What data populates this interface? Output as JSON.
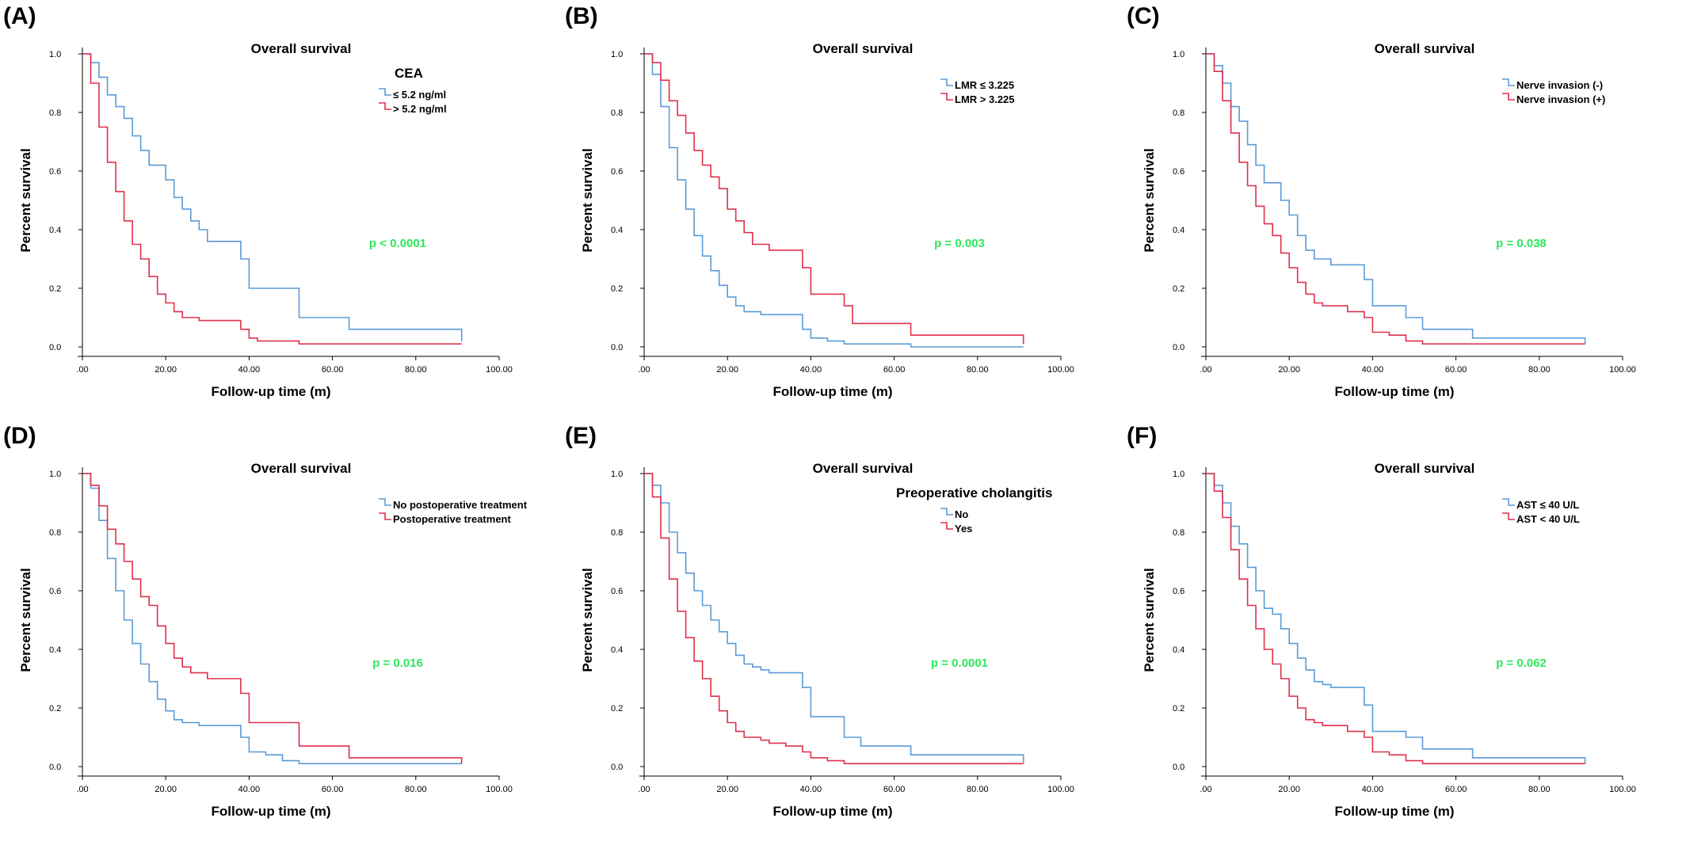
{
  "panels": [
    {
      "label": "(A)",
      "legend_title": "CEA",
      "p_value": "p < 0.0001",
      "chart_data": {
        "type": "line",
        "title": "Overall survival",
        "xlabel": "Follow-up time (m)",
        "ylabel": "Percent survival",
        "xlim": [
          0,
          100
        ],
        "ylim": [
          0,
          1.0
        ],
        "xticks": [
          ".00",
          "20.00",
          "40.00",
          "60.00",
          "80.00",
          "100.00"
        ],
        "yticks": [
          "0.0",
          "0.2",
          "0.4",
          "0.6",
          "0.8",
          "1.0"
        ],
        "grid": false,
        "legend_position": "top-right",
        "series": [
          {
            "name": "≤ 5.2 ng/ml",
            "color": "#5b9bd5",
            "x": [
              0,
              2,
              4,
              6,
              8,
              10,
              12,
              14,
              16,
              18,
              20,
              22,
              24,
              26,
              28,
              30,
              33,
              36,
              38,
              40,
              44,
              48,
              52,
              56,
              60,
              64,
              70,
              80,
              91
            ],
            "y": [
              1.0,
              0.97,
              0.92,
              0.86,
              0.82,
              0.78,
              0.72,
              0.67,
              0.62,
              0.62,
              0.57,
              0.51,
              0.47,
              0.43,
              0.4,
              0.36,
              0.36,
              0.36,
              0.3,
              0.2,
              0.2,
              0.2,
              0.1,
              0.1,
              0.1,
              0.06,
              0.06,
              0.06,
              0.02
            ]
          },
          {
            "name": "> 5.2 ng/ml",
            "color": "#e0304b",
            "x": [
              0,
              2,
              4,
              6,
              8,
              10,
              12,
              14,
              16,
              18,
              20,
              22,
              24,
              26,
              28,
              30,
              34,
              38,
              40,
              42,
              44,
              48,
              52,
              56,
              60,
              64,
              70,
              80,
              91
            ],
            "y": [
              1.0,
              0.9,
              0.75,
              0.63,
              0.53,
              0.43,
              0.35,
              0.3,
              0.24,
              0.18,
              0.15,
              0.12,
              0.1,
              0.1,
              0.09,
              0.09,
              0.09,
              0.06,
              0.03,
              0.02,
              0.02,
              0.02,
              0.01,
              0.01,
              0.01,
              0.01,
              0.01,
              0.01,
              0.01
            ]
          }
        ]
      }
    },
    {
      "label": "(B)",
      "legend_title": "",
      "p_value": "p = 0.003",
      "chart_data": {
        "type": "line",
        "title": "Overall survival",
        "xlabel": "Follow-up time (m)",
        "ylabel": "Percent survival",
        "xlim": [
          0,
          100
        ],
        "ylim": [
          0,
          1.0
        ],
        "xticks": [
          ".00",
          "20.00",
          "40.00",
          "60.00",
          "80.00",
          "100.00"
        ],
        "yticks": [
          "0.0",
          "0.2",
          "0.4",
          "0.6",
          "0.8",
          "1.0"
        ],
        "grid": false,
        "legend_position": "top-right",
        "series": [
          {
            "name": "LMR ≤ 3.225",
            "color": "#5b9bd5",
            "x": [
              0,
              2,
              4,
              6,
              8,
              10,
              12,
              14,
              16,
              18,
              20,
              22,
              24,
              26,
              28,
              30,
              34,
              38,
              40,
              44,
              48,
              52,
              56,
              60,
              64,
              70,
              80,
              91
            ],
            "y": [
              1.0,
              0.93,
              0.82,
              0.68,
              0.57,
              0.47,
              0.38,
              0.31,
              0.26,
              0.21,
              0.17,
              0.14,
              0.12,
              0.12,
              0.11,
              0.11,
              0.11,
              0.06,
              0.03,
              0.02,
              0.01,
              0.01,
              0.01,
              0.01,
              0.0,
              0.0,
              0.0,
              0.0
            ]
          },
          {
            "name": "LMR > 3.225",
            "color": "#e0304b",
            "x": [
              0,
              2,
              4,
              6,
              8,
              10,
              12,
              14,
              16,
              18,
              20,
              22,
              24,
              26,
              28,
              30,
              34,
              36,
              38,
              40,
              44,
              48,
              50,
              52,
              56,
              60,
              64,
              70,
              80,
              91
            ],
            "y": [
              1.0,
              0.97,
              0.91,
              0.84,
              0.79,
              0.73,
              0.67,
              0.62,
              0.58,
              0.54,
              0.47,
              0.43,
              0.39,
              0.35,
              0.35,
              0.33,
              0.33,
              0.33,
              0.27,
              0.18,
              0.18,
              0.14,
              0.08,
              0.08,
              0.08,
              0.08,
              0.04,
              0.04,
              0.04,
              0.01
            ]
          }
        ]
      }
    },
    {
      "label": "(C)",
      "legend_title": "",
      "p_value": "p = 0.038",
      "chart_data": {
        "type": "line",
        "title": "Overall survival",
        "xlabel": "Follow-up time (m)",
        "ylabel": "Percent survival",
        "xlim": [
          0,
          100
        ],
        "ylim": [
          0,
          1.0
        ],
        "xticks": [
          ".00",
          "20.00",
          "40.00",
          "60.00",
          "80.00",
          "100.00"
        ],
        "yticks": [
          "0.0",
          "0.2",
          "0.4",
          "0.6",
          "0.8",
          "1.0"
        ],
        "grid": false,
        "legend_position": "top-right",
        "series": [
          {
            "name": "Nerve invasion (-)",
            "color": "#5b9bd5",
            "x": [
              0,
              2,
              4,
              6,
              8,
              10,
              12,
              14,
              16,
              18,
              20,
              22,
              24,
              26,
              28,
              30,
              34,
              38,
              40,
              44,
              48,
              52,
              56,
              60,
              64,
              70,
              80,
              91
            ],
            "y": [
              1.0,
              0.96,
              0.9,
              0.82,
              0.77,
              0.69,
              0.62,
              0.56,
              0.56,
              0.5,
              0.45,
              0.38,
              0.33,
              0.3,
              0.3,
              0.28,
              0.28,
              0.23,
              0.14,
              0.14,
              0.1,
              0.06,
              0.06,
              0.06,
              0.03,
              0.03,
              0.03,
              0.01
            ]
          },
          {
            "name": "Nerve invasion (+)",
            "color": "#e0304b",
            "x": [
              0,
              2,
              4,
              6,
              8,
              10,
              12,
              14,
              16,
              18,
              20,
              22,
              24,
              26,
              28,
              30,
              34,
              38,
              40,
              44,
              48,
              52,
              56,
              60,
              64,
              70,
              80,
              91
            ],
            "y": [
              1.0,
              0.94,
              0.84,
              0.73,
              0.63,
              0.55,
              0.48,
              0.42,
              0.38,
              0.32,
              0.27,
              0.22,
              0.18,
              0.15,
              0.14,
              0.14,
              0.12,
              0.1,
              0.05,
              0.04,
              0.02,
              0.01,
              0.01,
              0.01,
              0.01,
              0.01,
              0.01,
              0.01
            ]
          }
        ]
      }
    },
    {
      "label": "(D)",
      "legend_title": "",
      "p_value": "p = 0.016",
      "chart_data": {
        "type": "line",
        "title": "Overall survival",
        "xlabel": "Follow-up time (m)",
        "ylabel": "Percent survival",
        "xlim": [
          0,
          100
        ],
        "ylim": [
          0,
          1.0
        ],
        "xticks": [
          ".00",
          "20.00",
          "40.00",
          "60.00",
          "80.00",
          "100.00"
        ],
        "yticks": [
          "0.0",
          "0.2",
          "0.4",
          "0.6",
          "0.8",
          "1.0"
        ],
        "grid": false,
        "legend_position": "top-right",
        "series": [
          {
            "name": "No postoperative treatment",
            "color": "#5b9bd5",
            "x": [
              0,
              2,
              4,
              6,
              8,
              10,
              12,
              14,
              16,
              18,
              20,
              22,
              24,
              26,
              28,
              30,
              34,
              38,
              40,
              44,
              48,
              52,
              56,
              60,
              64,
              70,
              80,
              91
            ],
            "y": [
              1.0,
              0.95,
              0.84,
              0.71,
              0.6,
              0.5,
              0.42,
              0.35,
              0.29,
              0.23,
              0.19,
              0.16,
              0.15,
              0.15,
              0.14,
              0.14,
              0.14,
              0.1,
              0.05,
              0.04,
              0.02,
              0.01,
              0.01,
              0.01,
              0.01,
              0.01,
              0.01,
              0.01
            ]
          },
          {
            "name": "Postoperative treatment",
            "color": "#e0304b",
            "x": [
              0,
              2,
              4,
              6,
              8,
              10,
              12,
              14,
              16,
              18,
              20,
              22,
              24,
              26,
              28,
              30,
              34,
              38,
              40,
              44,
              48,
              52,
              56,
              60,
              64,
              70,
              80,
              91
            ],
            "y": [
              1.0,
              0.96,
              0.89,
              0.81,
              0.76,
              0.7,
              0.64,
              0.58,
              0.55,
              0.48,
              0.42,
              0.37,
              0.34,
              0.32,
              0.32,
              0.3,
              0.3,
              0.25,
              0.15,
              0.15,
              0.15,
              0.07,
              0.07,
              0.07,
              0.03,
              0.03,
              0.03,
              0.01
            ]
          }
        ]
      }
    },
    {
      "label": "(E)",
      "legend_title": "Preoperative cholangitis",
      "p_value": "p = 0.0001",
      "chart_data": {
        "type": "line",
        "title": "Overall survival",
        "xlabel": "Follow-up time (m)",
        "ylabel": "Percent survival",
        "xlim": [
          0,
          100
        ],
        "ylim": [
          0,
          1.0
        ],
        "xticks": [
          ".00",
          "20.00",
          "40.00",
          "60.00",
          "80.00",
          "100.00"
        ],
        "yticks": [
          "0.0",
          "0.2",
          "0.4",
          "0.6",
          "0.8",
          "1.0"
        ],
        "grid": false,
        "legend_position": "top-right",
        "series": [
          {
            "name": "No",
            "color": "#5b9bd5",
            "x": [
              0,
              2,
              4,
              6,
              8,
              10,
              12,
              14,
              16,
              18,
              20,
              22,
              24,
              26,
              28,
              30,
              34,
              38,
              40,
              44,
              48,
              52,
              56,
              60,
              64,
              70,
              80,
              91
            ],
            "y": [
              1.0,
              0.96,
              0.9,
              0.8,
              0.73,
              0.66,
              0.6,
              0.55,
              0.5,
              0.46,
              0.42,
              0.38,
              0.35,
              0.34,
              0.33,
              0.32,
              0.32,
              0.27,
              0.17,
              0.17,
              0.1,
              0.07,
              0.07,
              0.07,
              0.04,
              0.04,
              0.04,
              0.01
            ]
          },
          {
            "name": "Yes",
            "color": "#e0304b",
            "x": [
              0,
              2,
              4,
              6,
              8,
              10,
              12,
              14,
              16,
              18,
              20,
              22,
              24,
              26,
              28,
              30,
              34,
              38,
              40,
              44,
              48,
              52,
              56,
              60,
              64,
              70,
              80,
              91
            ],
            "y": [
              1.0,
              0.92,
              0.78,
              0.64,
              0.53,
              0.44,
              0.36,
              0.3,
              0.24,
              0.19,
              0.15,
              0.12,
              0.1,
              0.1,
              0.09,
              0.08,
              0.07,
              0.05,
              0.03,
              0.02,
              0.01,
              0.01,
              0.01,
              0.01,
              0.01,
              0.01,
              0.01,
              0.01
            ]
          }
        ]
      }
    },
    {
      "label": "(F)",
      "legend_title": "",
      "p_value": "p = 0.062",
      "chart_data": {
        "type": "line",
        "title": "Overall survival",
        "xlabel": "Follow-up time (m)",
        "ylabel": "Percent survival",
        "xlim": [
          0,
          100
        ],
        "ylim": [
          0,
          1.0
        ],
        "xticks": [
          ".00",
          "20.00",
          "40.00",
          "60.00",
          "80.00",
          "100.00"
        ],
        "yticks": [
          "0.0",
          "0.2",
          "0.4",
          "0.6",
          "0.8",
          "1.0"
        ],
        "grid": false,
        "legend_position": "top-right",
        "series": [
          {
            "name": "AST ≤ 40 U/L",
            "color": "#5b9bd5",
            "x": [
              0,
              2,
              4,
              6,
              8,
              10,
              12,
              14,
              16,
              18,
              20,
              22,
              24,
              26,
              28,
              30,
              34,
              38,
              40,
              44,
              48,
              52,
              56,
              60,
              64,
              70,
              80,
              91
            ],
            "y": [
              1.0,
              0.96,
              0.9,
              0.82,
              0.76,
              0.68,
              0.6,
              0.54,
              0.52,
              0.47,
              0.42,
              0.37,
              0.33,
              0.29,
              0.28,
              0.27,
              0.27,
              0.21,
              0.12,
              0.12,
              0.1,
              0.06,
              0.06,
              0.06,
              0.03,
              0.03,
              0.03,
              0.01
            ]
          },
          {
            "name": "AST < 40 U/L",
            "color": "#e0304b",
            "x": [
              0,
              2,
              4,
              6,
              8,
              10,
              12,
              14,
              16,
              18,
              20,
              22,
              24,
              26,
              28,
              30,
              34,
              38,
              40,
              44,
              48,
              52,
              56,
              60,
              64,
              70,
              80,
              91
            ],
            "y": [
              1.0,
              0.94,
              0.85,
              0.74,
              0.64,
              0.55,
              0.47,
              0.4,
              0.35,
              0.3,
              0.24,
              0.2,
              0.16,
              0.15,
              0.14,
              0.14,
              0.12,
              0.1,
              0.05,
              0.04,
              0.02,
              0.01,
              0.01,
              0.01,
              0.01,
              0.01,
              0.01,
              0.01
            ]
          }
        ]
      }
    }
  ],
  "colors": {
    "blue_series": "#5b9bd5",
    "red_series": "#e0304b",
    "p_value_text": "#2ee85a",
    "axis": "#000000"
  }
}
